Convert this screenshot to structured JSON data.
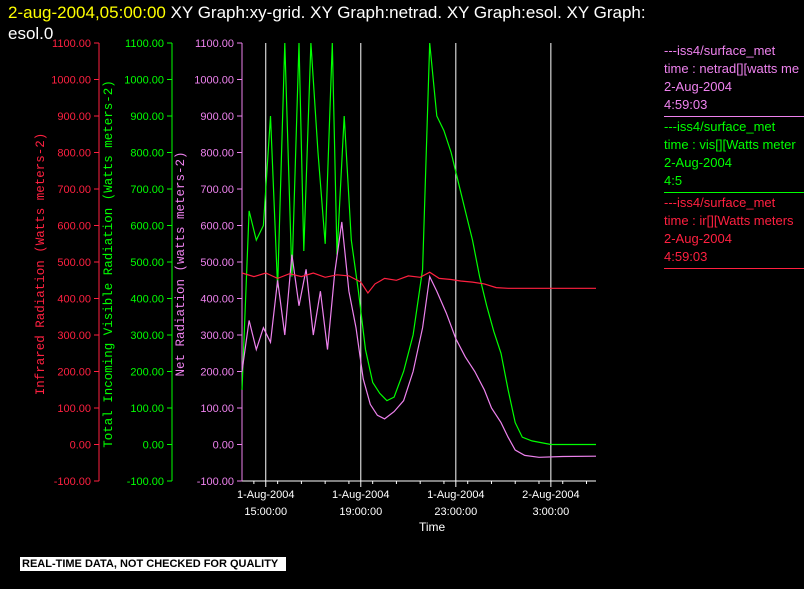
{
  "header": {
    "timestamp": "2-aug-2004,05:00:00",
    "title_line1": "XY Graph:xy-grid.  XY Graph:netrad.  XY Graph:esol.  XY Graph:",
    "title_line2": "esol.0"
  },
  "legend": [
    {
      "line1": "---iss4/surface_met",
      "line2": "time : netrad[][watts me",
      "line3": "2-Aug-2004",
      "line4": "4:59:03",
      "color": "#ee82ee"
    },
    {
      "line1": "---iss4/surface_met",
      "line2": "time : vis[][Watts meter",
      "line3": "2-Aug-2004",
      "line4": "4:5",
      "color": "#00ff00"
    },
    {
      "line1": "---iss4/surface_met",
      "line2": "time : ir[][Watts meters",
      "line3": "2-Aug-2004",
      "line4": "4:59:03",
      "color": "#ff2040"
    }
  ],
  "footer": {
    "text": "REAL-TIME DATA, NOT CHECKED FOR QUALITY"
  },
  "chart_data": {
    "type": "line",
    "xlabel": "Time",
    "x_ticks": [
      {
        "t": 15,
        "l1": "1-Aug-2004",
        "l2": "15:00:00"
      },
      {
        "t": 19,
        "l1": "1-Aug-2004",
        "l2": "19:00:00"
      },
      {
        "t": 23,
        "l1": "1-Aug-2004",
        "l2": "23:00:00"
      },
      {
        "t": 27,
        "l1": "2-Aug-2004",
        "l2": "3:00:00"
      }
    ],
    "xlim_hours_since_aug1": [
      14.0,
      28.9
    ],
    "ylim": [
      -100,
      1100
    ],
    "y_ticks": [
      "1100.00",
      "1000.00",
      "900.00",
      "800.00",
      "700.00",
      "600.00",
      "500.00",
      "400.00",
      "300.00",
      "200.00",
      "100.00",
      "0.00",
      "-100.00"
    ],
    "y_tick_values": [
      1100,
      1000,
      900,
      800,
      700,
      600,
      500,
      400,
      300,
      200,
      100,
      0,
      -100
    ],
    "axes": [
      {
        "label": "Infrared Radiation (Watts meters-2)",
        "color": "#ff2040"
      },
      {
        "label": "Total Incoming Visible Radiation (Watts meters-2)",
        "color": "#00ff00"
      },
      {
        "label": "Net Radiation (watts meters-2)",
        "color": "#ee82ee"
      }
    ],
    "grid": true,
    "series": [
      {
        "name": "vis",
        "color": "#00ff00",
        "points": [
          [
            14.0,
            150
          ],
          [
            14.3,
            640
          ],
          [
            14.6,
            560
          ],
          [
            14.9,
            600
          ],
          [
            15.2,
            900
          ],
          [
            15.5,
            430
          ],
          [
            15.8,
            1100
          ],
          [
            16.1,
            460
          ],
          [
            16.4,
            1100
          ],
          [
            16.6,
            530
          ],
          [
            16.9,
            1100
          ],
          [
            17.2,
            800
          ],
          [
            17.5,
            550
          ],
          [
            17.8,
            1100
          ],
          [
            18.0,
            520
          ],
          [
            18.3,
            900
          ],
          [
            18.6,
            560
          ],
          [
            18.9,
            420
          ],
          [
            19.2,
            260
          ],
          [
            19.5,
            170
          ],
          [
            19.8,
            140
          ],
          [
            20.1,
            120
          ],
          [
            20.4,
            130
          ],
          [
            20.8,
            200
          ],
          [
            21.2,
            300
          ],
          [
            21.6,
            480
          ],
          [
            21.9,
            1100
          ],
          [
            22.2,
            900
          ],
          [
            22.5,
            860
          ],
          [
            22.8,
            800
          ],
          [
            23.1,
            720
          ],
          [
            23.4,
            640
          ],
          [
            23.7,
            560
          ],
          [
            24.0,
            460
          ],
          [
            24.3,
            380
          ],
          [
            24.6,
            310
          ],
          [
            24.9,
            250
          ],
          [
            25.2,
            150
          ],
          [
            25.5,
            60
          ],
          [
            25.8,
            20
          ],
          [
            26.2,
            10
          ],
          [
            27.0,
            0
          ],
          [
            28.0,
            0
          ],
          [
            28.9,
            0
          ]
        ]
      },
      {
        "name": "netrad",
        "color": "#ee82ee",
        "points": [
          [
            14.0,
            200
          ],
          [
            14.3,
            340
          ],
          [
            14.6,
            260
          ],
          [
            14.9,
            320
          ],
          [
            15.2,
            280
          ],
          [
            15.5,
            450
          ],
          [
            15.8,
            300
          ],
          [
            16.1,
            520
          ],
          [
            16.4,
            380
          ],
          [
            16.7,
            480
          ],
          [
            17.0,
            300
          ],
          [
            17.3,
            420
          ],
          [
            17.6,
            260
          ],
          [
            17.9,
            470
          ],
          [
            18.2,
            610
          ],
          [
            18.5,
            420
          ],
          [
            18.8,
            320
          ],
          [
            19.1,
            180
          ],
          [
            19.4,
            110
          ],
          [
            19.7,
            80
          ],
          [
            20.0,
            70
          ],
          [
            20.4,
            90
          ],
          [
            20.8,
            120
          ],
          [
            21.2,
            200
          ],
          [
            21.6,
            320
          ],
          [
            21.9,
            460
          ],
          [
            22.2,
            420
          ],
          [
            22.6,
            360
          ],
          [
            23.0,
            290
          ],
          [
            23.4,
            240
          ],
          [
            23.8,
            200
          ],
          [
            24.2,
            150
          ],
          [
            24.5,
            100
          ],
          [
            24.9,
            60
          ],
          [
            25.2,
            20
          ],
          [
            25.5,
            -15
          ],
          [
            25.9,
            -30
          ],
          [
            26.5,
            -35
          ],
          [
            27.5,
            -33
          ],
          [
            28.9,
            -32
          ]
        ]
      },
      {
        "name": "ir",
        "color": "#ff2040",
        "points": [
          [
            14.0,
            470
          ],
          [
            14.5,
            460
          ],
          [
            15.0,
            470
          ],
          [
            15.5,
            455
          ],
          [
            16.0,
            468
          ],
          [
            16.5,
            460
          ],
          [
            17.0,
            470
          ],
          [
            17.5,
            458
          ],
          [
            18.0,
            465
          ],
          [
            18.5,
            462
          ],
          [
            19.0,
            445
          ],
          [
            19.3,
            415
          ],
          [
            19.6,
            440
          ],
          [
            20.0,
            455
          ],
          [
            20.5,
            450
          ],
          [
            21.0,
            462
          ],
          [
            21.5,
            458
          ],
          [
            21.9,
            472
          ],
          [
            22.3,
            455
          ],
          [
            22.8,
            452
          ],
          [
            23.2,
            448
          ],
          [
            23.7,
            445
          ],
          [
            24.2,
            440
          ],
          [
            24.7,
            430
          ],
          [
            25.2,
            428
          ],
          [
            25.8,
            428
          ],
          [
            26.5,
            428
          ],
          [
            27.5,
            428
          ],
          [
            28.9,
            428
          ]
        ]
      }
    ]
  }
}
